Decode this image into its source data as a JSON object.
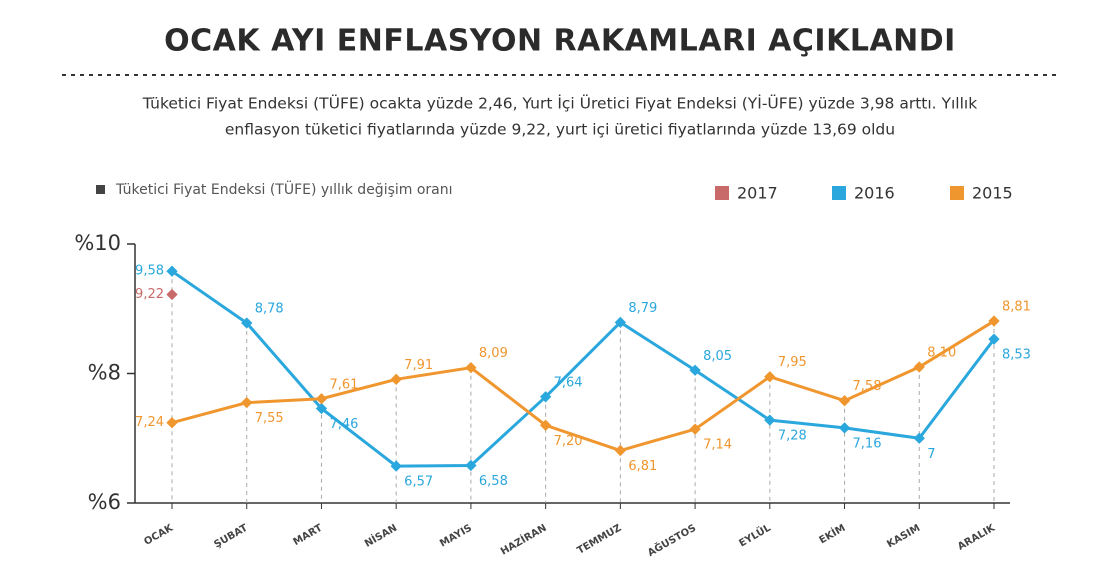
{
  "chart_data": {
    "type": "line",
    "title": "OCAK AYI ENFLASYON RAKAMLARI AÇIKLANDI",
    "subtitle": [
      "Tüketici Fiyat Endeksi (TÜFE) ocakta yüzde 2,46, Yurt İçi Üretici Fiyat Endeksi (Yİ-ÜFE) yüzde 3,98 arttı. Yıllık",
      "enflasyon tüketici fiyatlarında yüzde 9,22, yurt içi üretici fiyatlarında yüzde 13,69 oldu"
    ],
    "note": "Tüketici Fiyat Endeksi (TÜFE) yıllık değişim oranı",
    "categories": [
      "OCAK",
      "ŞUBAT",
      "MART",
      "NİSAN",
      "MAYIS",
      "HAZİRAN",
      "TEMMUZ",
      "AĞUSTOS",
      "EYLÜL",
      "EKİM",
      "KASIM",
      "ARALIK"
    ],
    "series": [
      {
        "name": "2017",
        "color": "#c96a6a",
        "values": [
          9.22,
          null,
          null,
          null,
          null,
          null,
          null,
          null,
          null,
          null,
          null,
          null
        ],
        "value_labels": [
          "9,22",
          null,
          null,
          null,
          null,
          null,
          null,
          null,
          null,
          null,
          null,
          null
        ]
      },
      {
        "name": "2016",
        "color": "#2aa7dd",
        "values": [
          9.58,
          8.78,
          7.46,
          6.57,
          6.58,
          7.64,
          8.79,
          8.05,
          7.28,
          7.16,
          7,
          8.53
        ],
        "value_labels": [
          "9,58",
          "8,78",
          "7,46",
          "6,57",
          "6,58",
          "7,64",
          "8,79",
          "8,05",
          "7,28",
          "7,16",
          "7",
          "8,53"
        ]
      },
      {
        "name": "2015",
        "color": "#f0962e",
        "values": [
          7.24,
          7.55,
          7.61,
          7.91,
          8.09,
          7.2,
          6.81,
          7.14,
          7.95,
          7.58,
          8.1,
          8.81
        ],
        "value_labels": [
          "7,24",
          "7,55",
          "7,61",
          "7,91",
          "8,09",
          "7,20",
          "6,81",
          "7,14",
          "7,95",
          "7,58",
          "8,10",
          "8,81"
        ]
      }
    ],
    "ylim": [
      6,
      10
    ],
    "yticks": [
      {
        "value": 6,
        "label": "%6"
      },
      {
        "value": 8,
        "label": "%8"
      },
      {
        "value": 10,
        "label": "%10"
      }
    ],
    "legend": "top-right"
  }
}
